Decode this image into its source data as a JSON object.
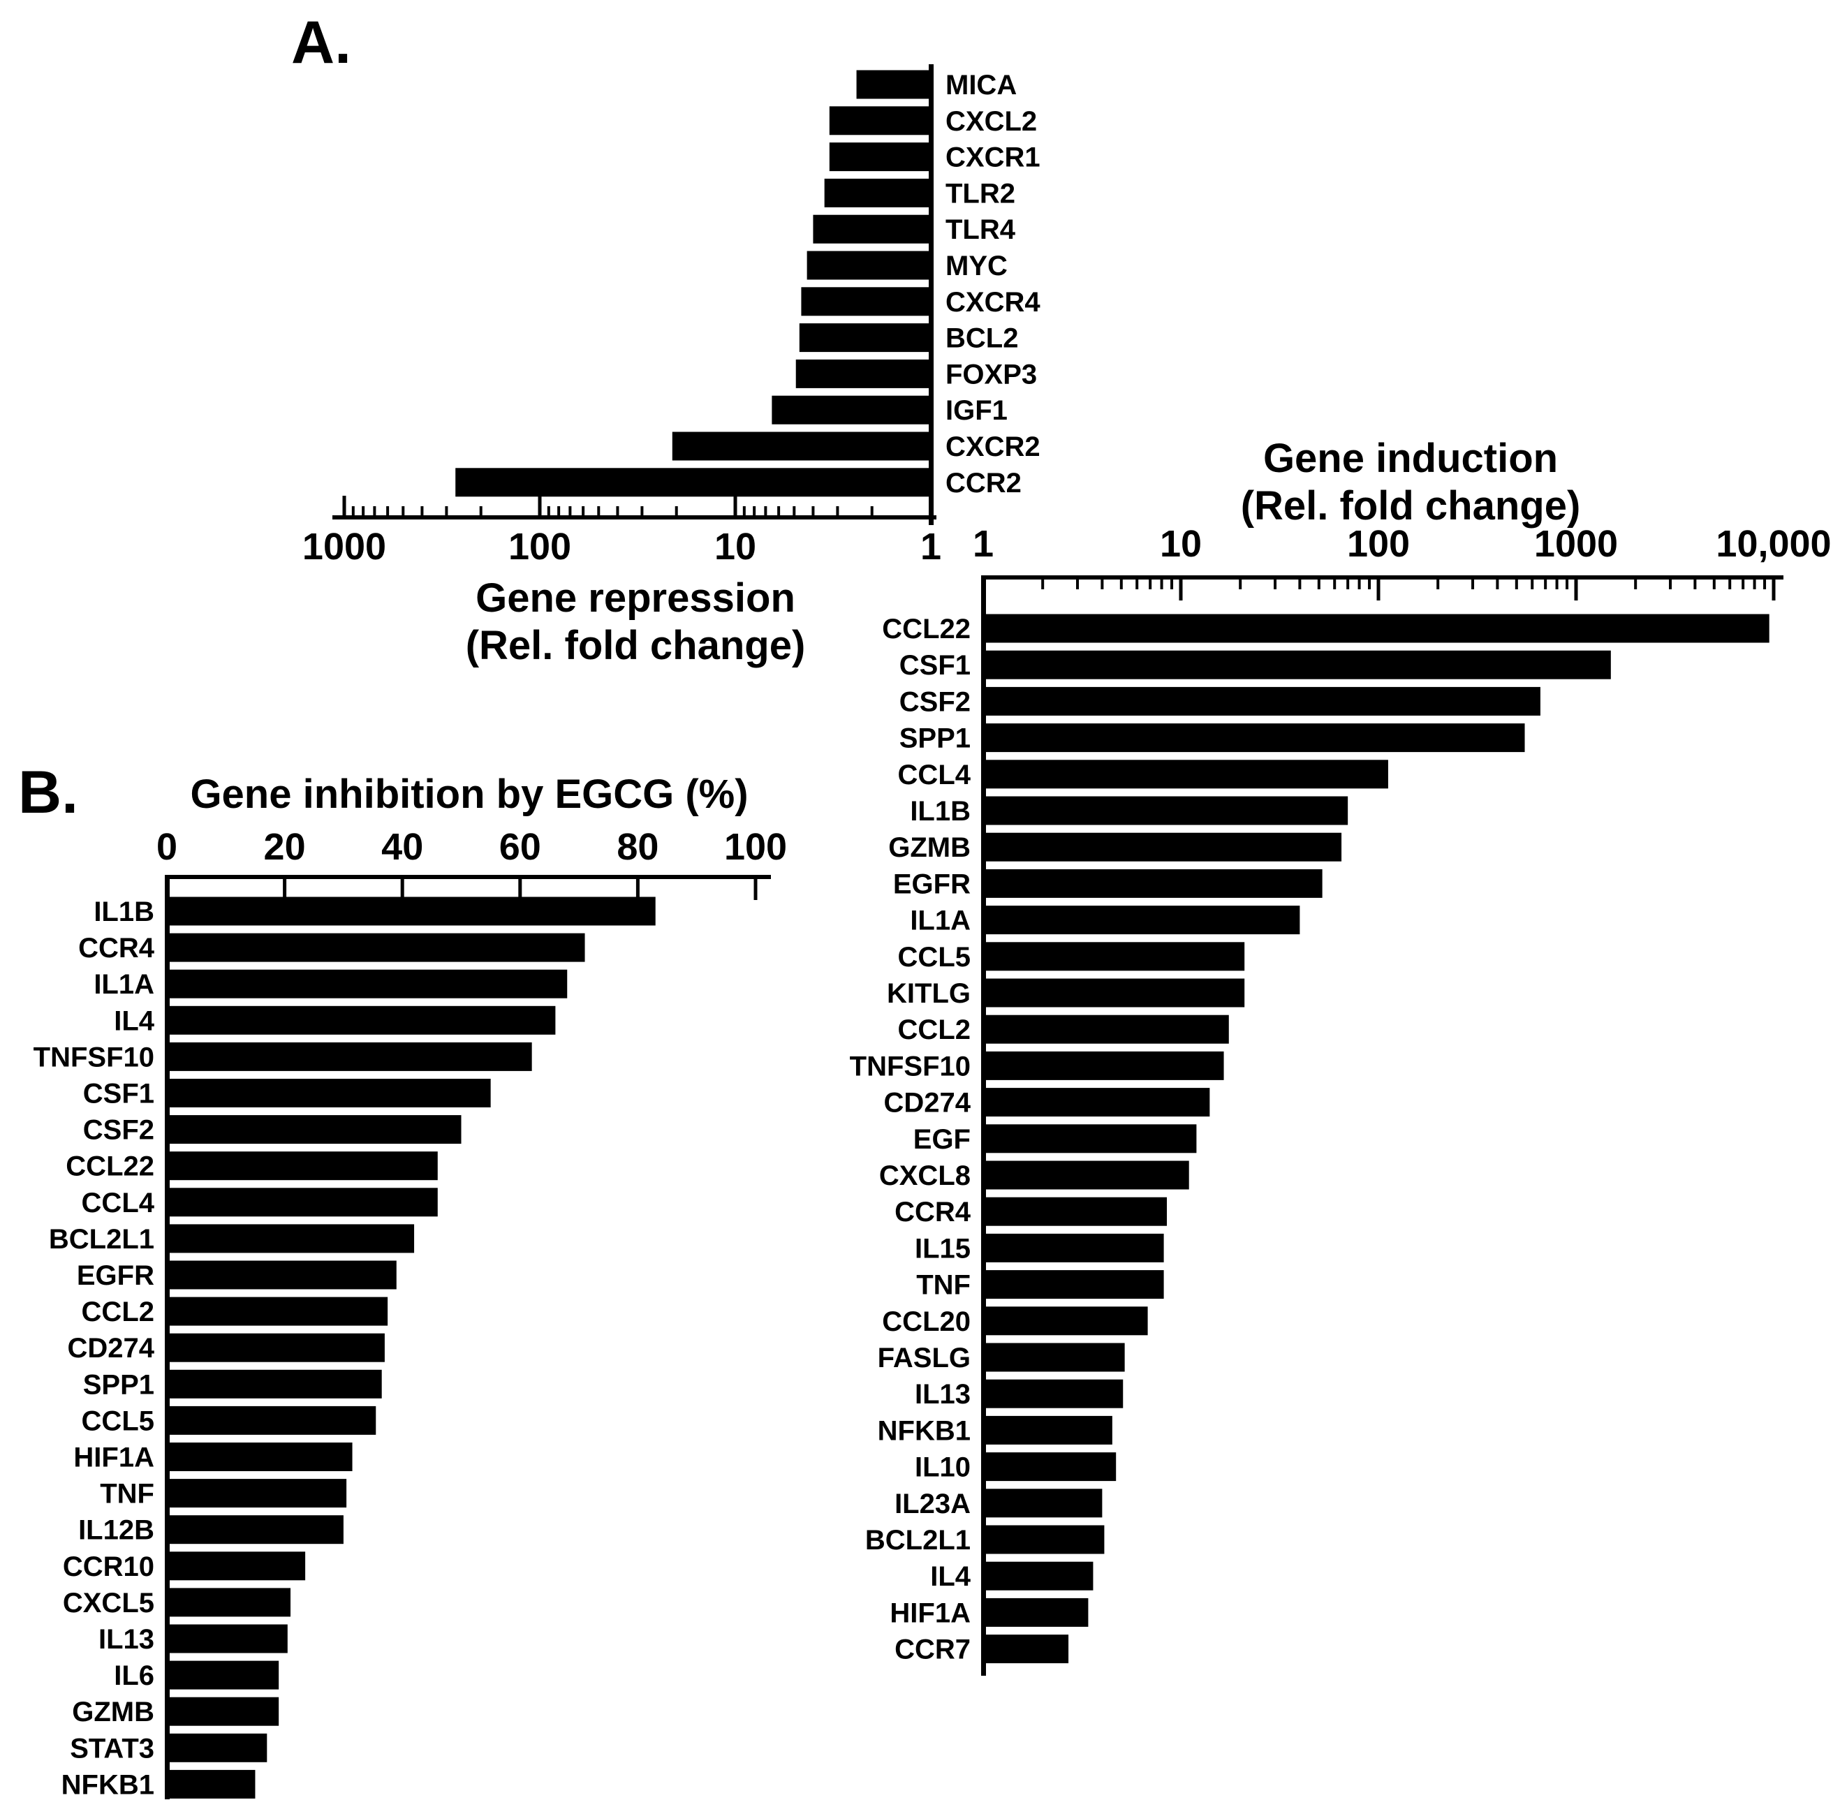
{
  "panel_a": {
    "label": "A."
  },
  "panel_b": {
    "label": "B."
  },
  "colors": {
    "bar": "#000000",
    "text": "#000000",
    "background": "#ffffff"
  },
  "chart_data": [
    {
      "id": "repression",
      "type": "bar",
      "orientation": "horizontal-left",
      "scale": "log10-reversed",
      "title": "Gene repression (Rel. fold change)",
      "title_lines": [
        "Gene repression",
        "(Rel. fold change)"
      ],
      "xlabel": "Gene repression (Rel. fold change)",
      "axis_range": [
        1,
        1000
      ],
      "axis_ticks": [
        {
          "label": "1000",
          "value": 1000
        },
        {
          "label": "100",
          "value": 100
        },
        {
          "label": "10",
          "value": 10
        },
        {
          "label": "1",
          "value": 1
        }
      ],
      "categories": [
        "MICA",
        "CXCL2",
        "CXCR1",
        "TLR2",
        "TLR4",
        "MYC",
        "CXCR4",
        "BCL2",
        "FOXP3",
        "IGF1",
        "CXCR2",
        "CCR2"
      ],
      "values": [
        2.4,
        3.3,
        3.3,
        3.5,
        4.0,
        4.3,
        4.6,
        4.7,
        4.9,
        6.5,
        21,
        270
      ],
      "grid": false,
      "legend": false
    },
    {
      "id": "induction",
      "type": "bar",
      "orientation": "horizontal-right",
      "scale": "log10",
      "title": "Gene induction (Rel. fold change)",
      "title_lines": [
        "Gene induction",
        "(Rel. fold change)"
      ],
      "xlabel": "Gene induction (Rel. fold change)",
      "axis_range": [
        1,
        10000
      ],
      "axis_ticks": [
        {
          "label": "1",
          "value": 1
        },
        {
          "label": "10",
          "value": 10
        },
        {
          "label": "100",
          "value": 100
        },
        {
          "label": "1000",
          "value": 1000
        },
        {
          "label": "10,000",
          "value": 10000
        }
      ],
      "categories": [
        "CCL22",
        "CSF1",
        "CSF2",
        "SPP1",
        "CCL4",
        "IL1B",
        "GZMB",
        "EGFR",
        "IL1A",
        "CCL5",
        "KITLG",
        "CCL2",
        "TNFSF10",
        "CD274",
        "EGF",
        "CXCL8",
        "CCR4",
        "IL15",
        "TNF",
        "CCL20",
        "FASLG",
        "IL13",
        "NFKB1",
        "IL10",
        "IL23A",
        "BCL2L1",
        "IL4",
        "HIF1A",
        "CCR7"
      ],
      "values": [
        9500,
        1500,
        660,
        550,
        112,
        70,
        65,
        52,
        40,
        21,
        21,
        17.5,
        16.5,
        14,
        12,
        11,
        8.5,
        8.2,
        8.2,
        6.8,
        5.2,
        5.1,
        4.5,
        4.7,
        4.0,
        4.1,
        3.6,
        3.4,
        2.7
      ],
      "grid": false,
      "legend": false
    },
    {
      "id": "inhibition",
      "type": "bar",
      "orientation": "horizontal-right",
      "scale": "linear",
      "title": "Gene inhibition by EGCG (%)",
      "title_lines": [
        "Gene inhibition by EGCG (%)"
      ],
      "xlabel": "Gene inhibition by EGCG (%)",
      "axis_range": [
        0,
        100
      ],
      "axis_ticks": [
        {
          "label": "0",
          "value": 0
        },
        {
          "label": "20",
          "value": 20
        },
        {
          "label": "40",
          "value": 40
        },
        {
          "label": "60",
          "value": 60
        },
        {
          "label": "80",
          "value": 80
        },
        {
          "label": "100",
          "value": 100
        }
      ],
      "categories": [
        "IL1B",
        "CCR4",
        "IL1A",
        "IL4",
        "TNFSF10",
        "CSF1",
        "CSF2",
        "CCL22",
        "CCL4",
        "BCL2L1",
        "EGFR",
        "CCL2",
        "CD274",
        "SPP1",
        "CCL5",
        "HIF1A",
        "TNF",
        "IL12B",
        "CCR10",
        "CXCL5",
        "IL13",
        "IL6",
        "GZMB",
        "STAT3",
        "NFKB1"
      ],
      "values": [
        83,
        71,
        68,
        66,
        62,
        55,
        50,
        46,
        46,
        42,
        39,
        37.5,
        37,
        36.5,
        35.5,
        31.5,
        30.5,
        30,
        23.5,
        21,
        20.5,
        19,
        19,
        17,
        15
      ],
      "grid": false,
      "legend": false
    }
  ]
}
